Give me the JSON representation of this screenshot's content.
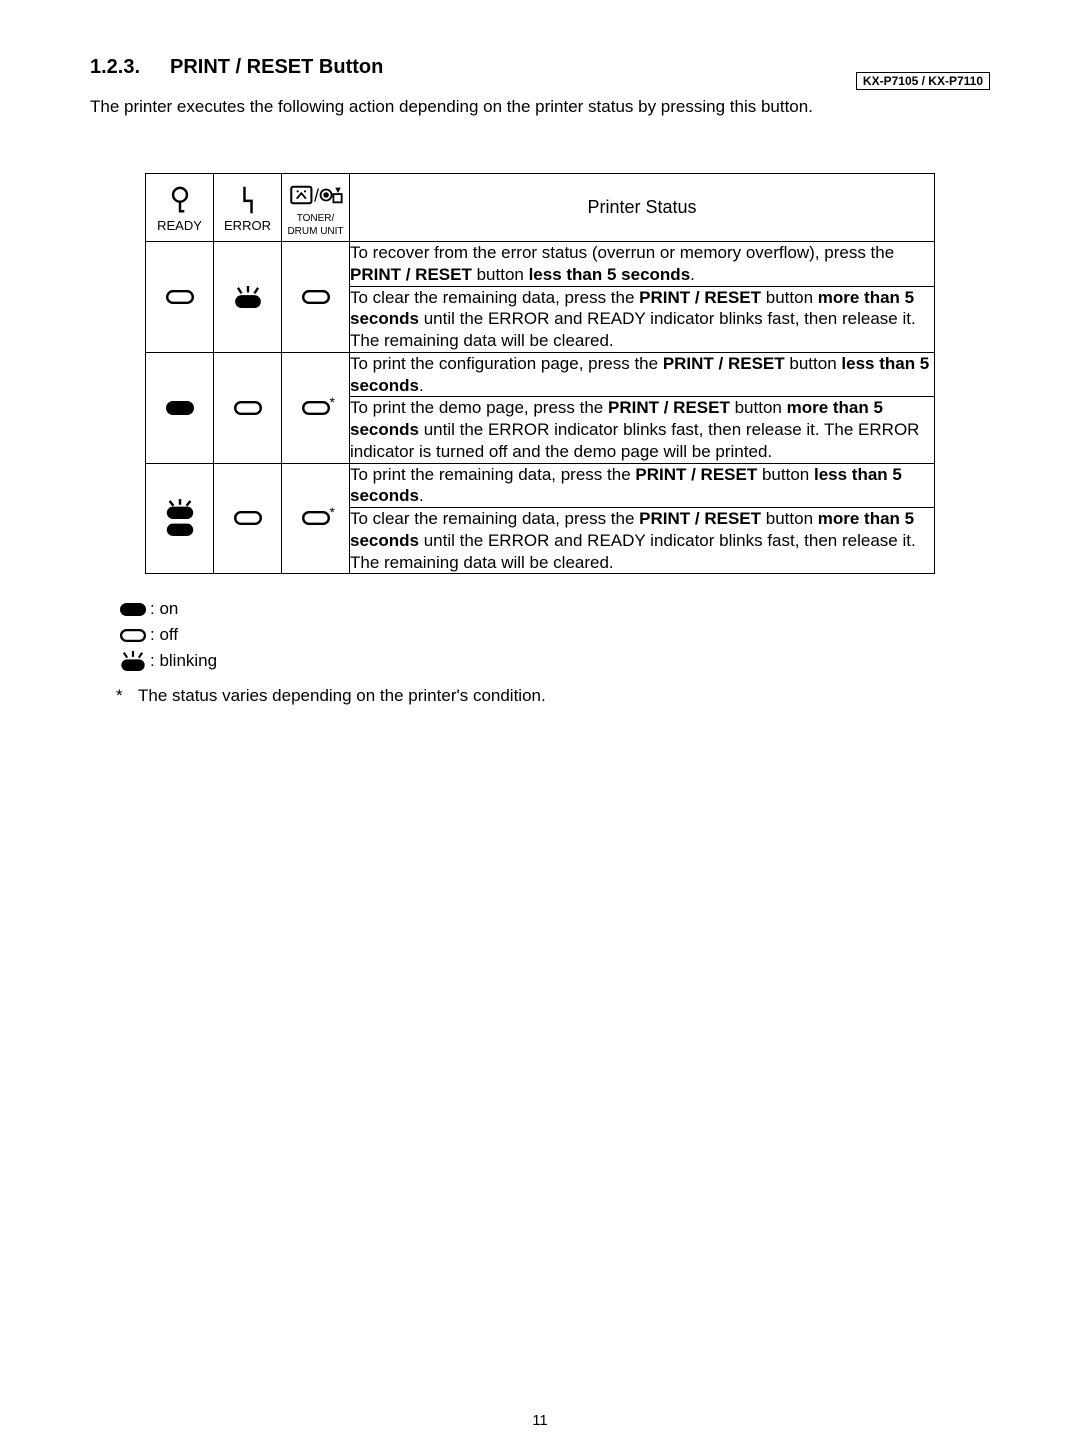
{
  "header_model": "KX-P7105  / KX-P7110",
  "section_number": "1.2.3.",
  "section_title": "PRINT / RESET Button",
  "intro_text": "The printer executes the following action depending on the printer status by pressing this button.",
  "table": {
    "headers": {
      "ready": "READY",
      "error": "ERROR",
      "drum_line1": "TONER/",
      "drum_line2": "DRUM UNIT",
      "status": "Printer Status"
    },
    "rows": [
      {
        "ready": "off",
        "error": "blinking",
        "drum": "off",
        "drum_asterisk": false,
        "descs": [
          [
            {
              "t": "To recover from the error status (overrun or memory overflow), press the "
            },
            {
              "t": "PRINT / RESET",
              "b": true
            },
            {
              "t": " button "
            },
            {
              "t": "less than 5 seconds",
              "b": true
            },
            {
              "t": "."
            }
          ],
          [
            {
              "t": "To clear the remaining data, press the "
            },
            {
              "t": "PRINT / RESET",
              "b": true
            },
            {
              "t": " button "
            },
            {
              "t": "more than 5 seconds",
              "b": true
            },
            {
              "t": " until the ERROR and READY indicator blinks fast, then release it. The remaining data will be cleared."
            }
          ]
        ]
      },
      {
        "ready": "on",
        "error": "off",
        "drum": "off",
        "drum_asterisk": true,
        "descs": [
          [
            {
              "t": "To print the configuration page, press the "
            },
            {
              "t": "PRINT / RESET",
              "b": true
            },
            {
              "t": " button "
            },
            {
              "t": "less than 5 seconds",
              "b": true
            },
            {
              "t": "."
            }
          ],
          [
            {
              "t": "To print the demo page, press the "
            },
            {
              "t": "PRINT / RESET",
              "b": true
            },
            {
              "t": " button "
            },
            {
              "t": "more than 5 seconds",
              "b": true
            },
            {
              "t": " until the ERROR indicator blinks fast, then release it. The ERROR indicator is turned off and the demo page will be printed."
            }
          ]
        ]
      },
      {
        "ready": "on_blinking",
        "error": "off",
        "drum": "off",
        "drum_asterisk": true,
        "descs": [
          [
            {
              "t": "To print the remaining data, press the "
            },
            {
              "t": "PRINT / RESET",
              "b": true
            },
            {
              "t": " button "
            },
            {
              "t": "less than 5 seconds",
              "b": true
            },
            {
              "t": "."
            }
          ],
          [
            {
              "t": "To clear the remaining data, press the "
            },
            {
              "t": "PRINT / RESET",
              "b": true
            },
            {
              "t": " button "
            },
            {
              "t": "more than 5 seconds",
              "b": true
            },
            {
              "t": " until the ERROR and READY indicator blinks fast, then release it. The remaining data will be cleared."
            }
          ]
        ]
      }
    ]
  },
  "legend": {
    "on": ": on",
    "off": ": off",
    "blinking": ": blinking"
  },
  "footnote_star": "*",
  "footnote_text": "The status varies depending on the printer's condition.",
  "page_number": "11",
  "colors": {
    "text": "#000000",
    "bg": "#ffffff",
    "border": "#000000"
  }
}
